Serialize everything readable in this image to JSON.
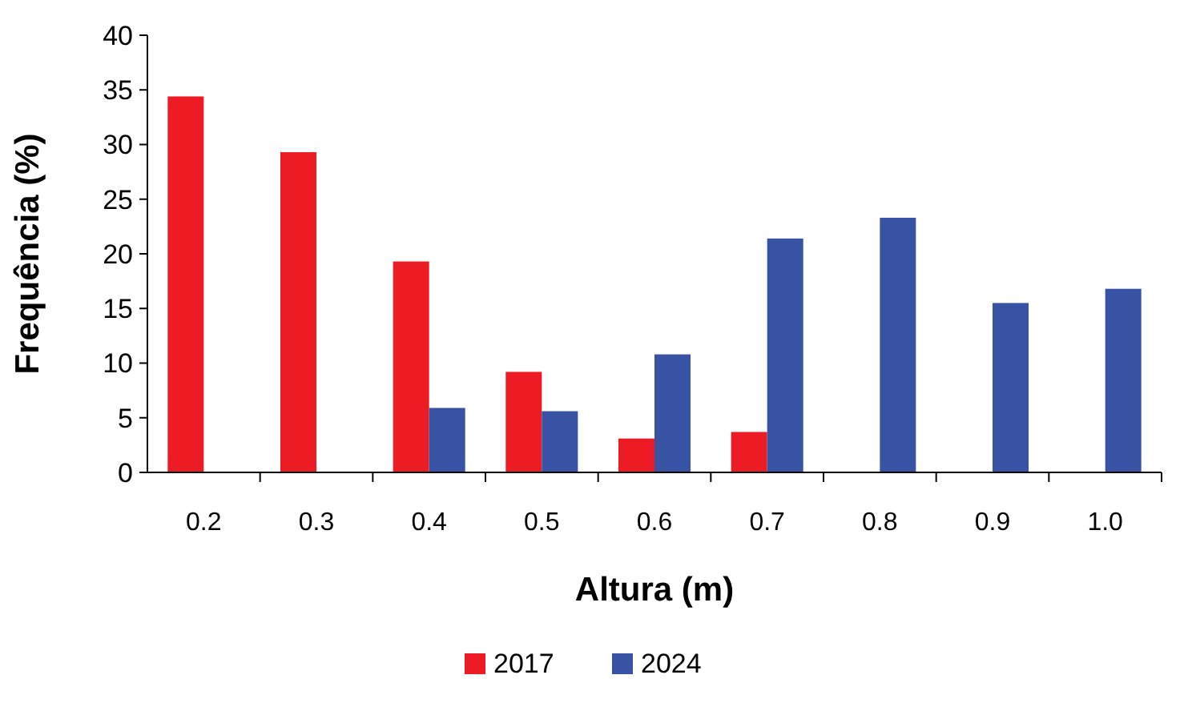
{
  "chart_data": {
    "type": "bar",
    "xlabel": "Altura (m)",
    "ylabel": "Frequência (%)",
    "categories": [
      "0.2",
      "0.3",
      "0.4",
      "0.5",
      "0.6",
      "0.7",
      "0.8",
      "0.9",
      "1.0"
    ],
    "series": [
      {
        "name": "2017",
        "color": "#ed1c24",
        "values": [
          34.4,
          29.3,
          19.3,
          9.2,
          3.1,
          3.7,
          0,
          0,
          0
        ]
      },
      {
        "name": "2024",
        "color": "#3953a4",
        "values": [
          0,
          0,
          5.9,
          5.6,
          10.8,
          21.4,
          23.3,
          15.5,
          16.8
        ]
      }
    ],
    "ylim": [
      0,
      40
    ],
    "yticks": [
      0,
      5,
      10,
      15,
      20,
      25,
      30,
      35,
      40
    ],
    "grid": false,
    "legend": "bottom"
  }
}
